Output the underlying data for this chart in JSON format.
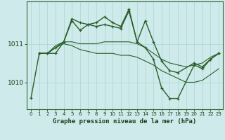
{
  "title": "Graphe pression niveau de la mer (hPa)",
  "bg_color": "#ceeaea",
  "grid_color": "#b0d8d8",
  "line_color": "#2a5f2a",
  "x_ticks": [
    0,
    1,
    2,
    3,
    4,
    5,
    6,
    7,
    8,
    9,
    10,
    11,
    12,
    13,
    14,
    15,
    16,
    17,
    18,
    19,
    20,
    21,
    22,
    23
  ],
  "y_ticks": [
    1010,
    1011
  ],
  "xlim": [
    -0.5,
    23.5
  ],
  "ylim": [
    1009.3,
    1012.1
  ],
  "series": [
    {
      "x": [
        0,
        1,
        2,
        3,
        4,
        5,
        6,
        7,
        8,
        9,
        10,
        11,
        12,
        13,
        14,
        15,
        16,
        17,
        18,
        20,
        21,
        22,
        23
      ],
      "y": [
        1009.6,
        1010.75,
        1010.75,
        1010.75,
        1011.05,
        1011.65,
        1011.55,
        1011.5,
        1011.55,
        1011.7,
        1011.55,
        1011.45,
        1011.9,
        1011.05,
        1011.6,
        1011.05,
        1010.55,
        1010.3,
        1010.25,
        1010.5,
        1010.4,
        1010.6,
        1010.75
      ],
      "marker": true,
      "lw": 1.0
    },
    {
      "x": [
        1,
        2,
        3,
        4,
        5,
        6,
        7,
        8,
        9,
        10,
        11,
        12,
        13,
        14,
        15,
        16,
        17,
        18,
        19,
        20,
        21,
        22,
        23
      ],
      "y": [
        1010.75,
        1010.75,
        1010.95,
        1011.05,
        1011.05,
        1011.0,
        1011.0,
        1011.0,
        1011.05,
        1011.05,
        1011.05,
        1011.05,
        1011.0,
        1010.9,
        1010.75,
        1010.6,
        1010.5,
        1010.45,
        1010.4,
        1010.45,
        1010.5,
        1010.65,
        1010.75
      ],
      "marker": false,
      "lw": 0.8
    },
    {
      "x": [
        1,
        2,
        3,
        4,
        5,
        6,
        7,
        8,
        9,
        10,
        11,
        12,
        13,
        14,
        15,
        16,
        17,
        18,
        19,
        20,
        21,
        22,
        23
      ],
      "y": [
        1010.75,
        1010.75,
        1010.9,
        1011.0,
        1010.95,
        1010.85,
        1010.8,
        1010.75,
        1010.75,
        1010.75,
        1010.7,
        1010.7,
        1010.65,
        1010.55,
        1010.45,
        1010.3,
        1010.2,
        1010.1,
        1010.0,
        1010.0,
        1010.05,
        1010.2,
        1010.35
      ],
      "marker": false,
      "lw": 0.8
    },
    {
      "x": [
        1,
        2,
        3,
        4,
        5,
        6,
        7,
        8,
        9,
        10,
        11,
        12,
        13,
        14,
        15,
        16,
        17,
        18,
        20,
        21,
        22,
        23
      ],
      "y": [
        1010.75,
        1010.75,
        1010.9,
        1011.05,
        1011.6,
        1011.35,
        1011.5,
        1011.45,
        1011.5,
        1011.45,
        1011.4,
        1011.85,
        1011.05,
        1010.9,
        1010.6,
        1009.85,
        1009.58,
        1009.58,
        1010.45,
        1010.35,
        1010.6,
        1010.75
      ],
      "marker": true,
      "lw": 1.0
    }
  ]
}
